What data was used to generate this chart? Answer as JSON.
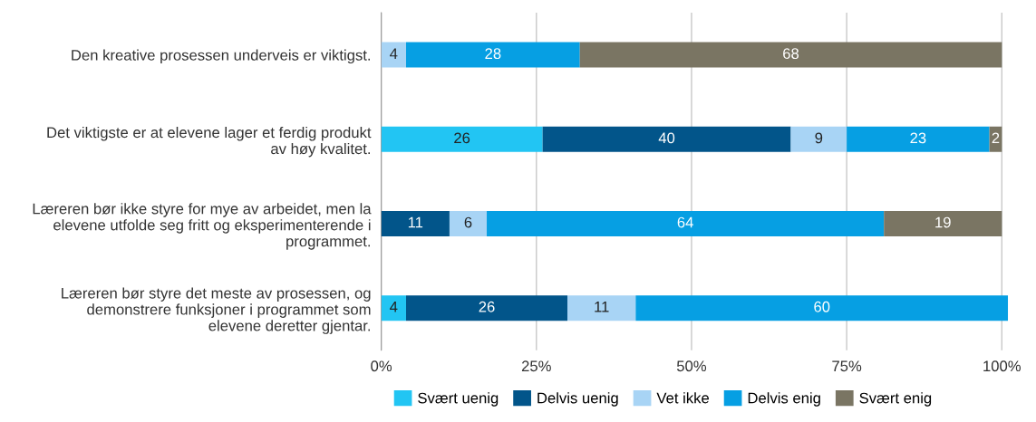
{
  "chart_data": {
    "type": "bar",
    "orientation": "horizontal",
    "stacked": true,
    "data_labels": true,
    "grid": "x",
    "legend": "bottom",
    "categories": [
      "Den kreative prosessen underveis er viktigst.",
      "Det viktigste er at elevene lager et ferdig produkt\nav høy kvalitet.",
      "Læreren bør ikke styre for mye av arbeidet, men la\nelevene utfolde seg fritt og eksperimenterende i\nprogrammet.",
      "Læreren bør styre det meste av prosessen, og\ndemonstrere funksjoner i programmet som\nelevene deretter gjentar."
    ],
    "series": [
      {
        "name": "Svært uenig",
        "color": "#22c5f3",
        "values": [
          null,
          26,
          null,
          4
        ]
      },
      {
        "name": "Delvis uenig",
        "color": "#02558a",
        "values": [
          null,
          40,
          11,
          26
        ]
      },
      {
        "name": "Vet ikke",
        "color": "#a8d4f5",
        "values": [
          4,
          9,
          6,
          11
        ]
      },
      {
        "name": "Delvis enig",
        "color": "#069fe3",
        "values": [
          28,
          23,
          64,
          60
        ]
      },
      {
        "name": "Svært enig",
        "color": "#7a7563",
        "values": [
          68,
          2,
          19,
          null
        ]
      }
    ],
    "xlim": [
      0,
      101
    ],
    "xticks": [
      {
        "value": 0,
        "label": "0%"
      },
      {
        "value": 25,
        "label": "25%"
      },
      {
        "value": 50,
        "label": "50%"
      },
      {
        "value": 75,
        "label": "75%"
      },
      {
        "value": 100,
        "label": "100%"
      }
    ]
  }
}
